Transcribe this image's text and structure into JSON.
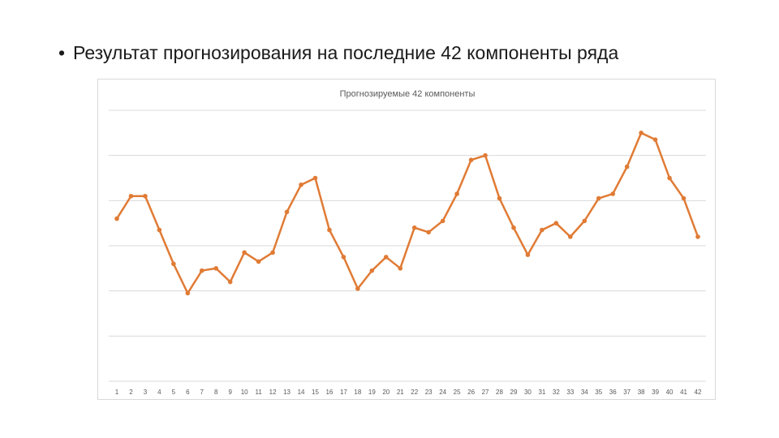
{
  "slide": {
    "bullet": "•",
    "title": "Результат прогнозирования на последние 42 компоненты ряда"
  },
  "colors": {
    "series": "#e07b35",
    "gridline": "#d9d9d9",
    "frame": "#d9d9d9",
    "text": "#595959"
  },
  "chart_data": {
    "type": "line",
    "title": "Прогнозируемые 42 компоненты",
    "xlabel": "",
    "ylabel": "",
    "categories": [
      "1",
      "2",
      "3",
      "4",
      "5",
      "6",
      "7",
      "8",
      "9",
      "10",
      "11",
      "12",
      "13",
      "14",
      "15",
      "16",
      "17",
      "18",
      "19",
      "20",
      "21",
      "22",
      "23",
      "24",
      "25",
      "26",
      "27",
      "28",
      "29",
      "30",
      "31",
      "32",
      "33",
      "34",
      "35",
      "36",
      "37",
      "38",
      "39",
      "40",
      "41",
      "42"
    ],
    "series": [
      {
        "values": [
          3.6,
          4.1,
          4.1,
          3.35,
          2.6,
          1.95,
          2.45,
          2.5,
          2.2,
          2.85,
          2.65,
          2.85,
          3.75,
          4.35,
          4.5,
          3.35,
          2.75,
          2.05,
          2.45,
          2.75,
          2.5,
          3.4,
          3.3,
          3.55,
          4.15,
          4.9,
          5.0,
          4.05,
          3.4,
          2.8,
          3.35,
          3.5,
          3.2,
          3.55,
          4.05,
          4.15,
          4.75,
          5.5,
          5.35,
          4.5,
          4.05,
          3.2
        ]
      }
    ],
    "ylim": [
      0,
      6
    ],
    "grid": true,
    "legend": "none",
    "y_tick_labels": "none"
  }
}
